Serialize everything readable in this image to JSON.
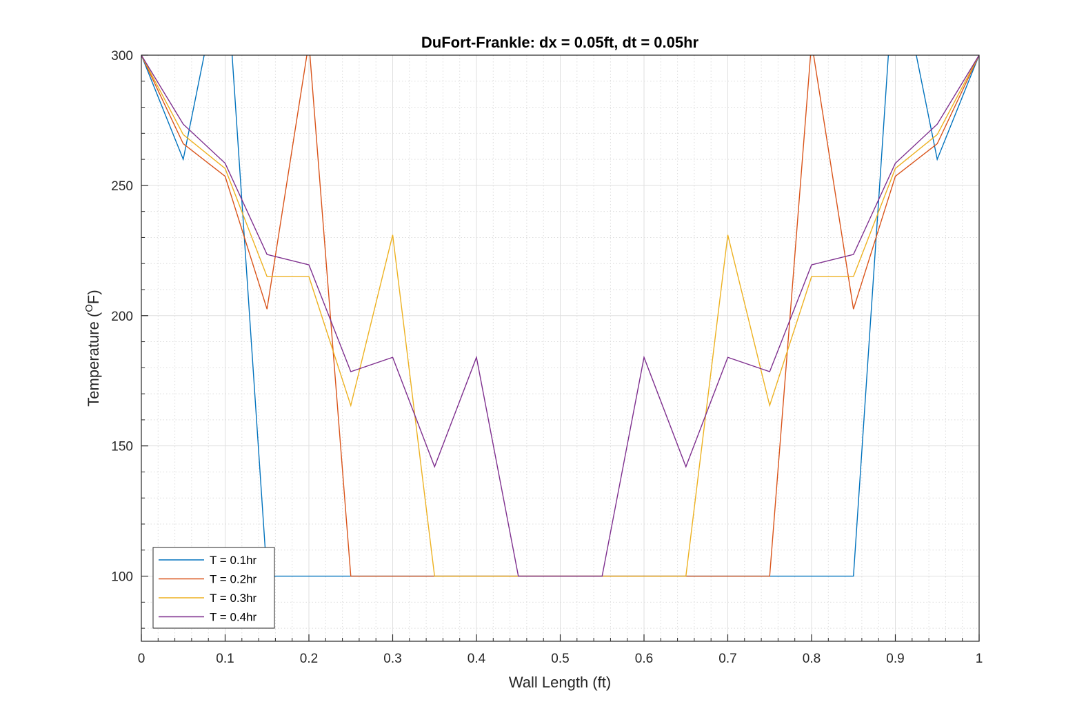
{
  "chart_data": {
    "type": "line",
    "title": "DuFort-Frankle: dx = 0.05ft, dt = 0.05hr",
    "xlabel": "Wall Length (ft)",
    "ylabel_main": "Temperature (",
    "ylabel_sup": "O",
    "ylabel_end": "F)",
    "xlim": [
      0,
      1
    ],
    "ylim": [
      75,
      300
    ],
    "xticks": [
      0,
      0.1,
      0.2,
      0.3,
      0.4,
      0.5,
      0.6,
      0.7,
      0.8,
      0.9,
      1
    ],
    "xtick_labels": [
      "0",
      "0.1",
      "0.2",
      "0.3",
      "0.4",
      "0.5",
      "0.6",
      "0.7",
      "0.8",
      "0.9",
      "1"
    ],
    "yticks": [
      100,
      150,
      200,
      250,
      300
    ],
    "ytick_labels": [
      "100",
      "150",
      "200",
      "250",
      "300"
    ],
    "grid": true,
    "minor_grid": true,
    "legend_position": "bottom-left",
    "x": [
      0,
      0.05,
      0.1,
      0.15,
      0.2,
      0.25,
      0.3,
      0.35,
      0.4,
      0.45,
      0.5,
      0.55,
      0.6,
      0.65,
      0.7,
      0.75,
      0.8,
      0.85,
      0.9,
      0.95,
      1
    ],
    "series": [
      {
        "name": "T = 0.1hr",
        "color": "#0072BD",
        "values": [
          300,
          260,
          340,
          100,
          100,
          100,
          100,
          100,
          100,
          100,
          100,
          100,
          100,
          100,
          100,
          100,
          100,
          100,
          340,
          260,
          300
        ]
      },
      {
        "name": "T = 0.2hr",
        "color": "#D95319",
        "values": [
          300,
          266,
          253.5,
          202.5,
          305,
          100,
          100,
          100,
          100,
          100,
          100,
          100,
          100,
          100,
          100,
          100,
          305,
          202.5,
          253.5,
          266,
          300
        ]
      },
      {
        "name": "T = 0.3hr",
        "color": "#EDB120",
        "values": [
          300,
          269.5,
          256.5,
          215,
          215,
          165.5,
          231,
          100,
          100,
          100,
          100,
          100,
          100,
          100,
          231,
          165.5,
          215,
          215,
          256.5,
          269.5,
          300
        ]
      },
      {
        "name": "T = 0.4hr",
        "color": "#7E2F8E",
        "values": [
          300,
          273.5,
          258.5,
          223.5,
          219.5,
          178.5,
          184,
          142,
          184,
          100,
          100,
          100,
          184,
          142,
          184,
          178.5,
          219.5,
          223.5,
          258.5,
          273.5,
          300
        ]
      }
    ]
  }
}
